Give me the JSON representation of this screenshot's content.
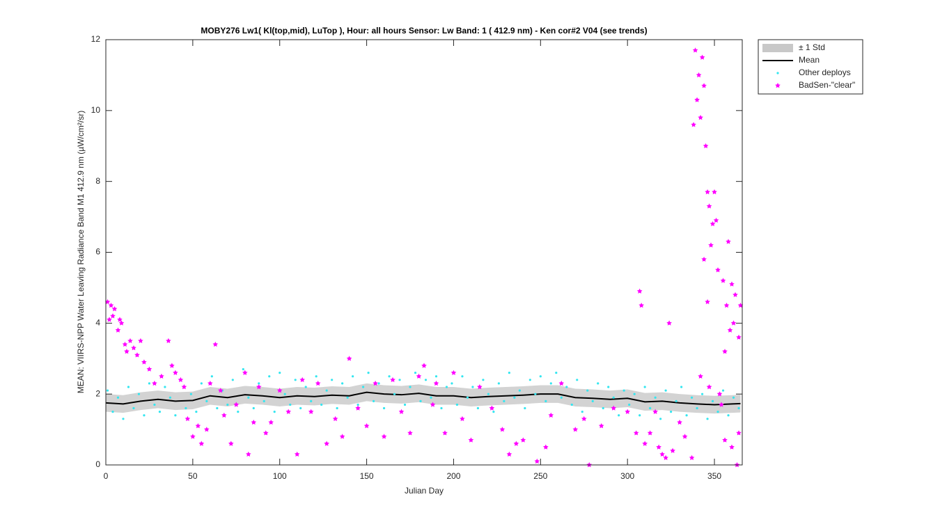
{
  "chart_data": {
    "type": "scatter",
    "title": "MOBY276   Lw1( Kl(top,mid), LuTop ),   Hour: all hours  Sensor: Lw Band: 1 ( 412.9 nm)  - Ken cor#2 V04 (see trends)",
    "xlabel": "Julian Day",
    "ylabel": "MEAN: VIIRS-NPP Water Leaving Radiance Band M1 412.9 nm (µW/cm²/sr)",
    "xlim": [
      0,
      366
    ],
    "ylim": [
      0,
      12
    ],
    "xticks": [
      0,
      50,
      100,
      150,
      200,
      250,
      300,
      350
    ],
    "yticks": [
      0,
      2,
      4,
      6,
      8,
      10,
      12
    ],
    "legend": "outside-upper-right",
    "series": [
      {
        "name": "± 1 Std",
        "kind": "band",
        "color": "#c8c8c8",
        "x": [
          0,
          10,
          20,
          30,
          40,
          50,
          60,
          70,
          80,
          90,
          100,
          110,
          120,
          130,
          140,
          150,
          160,
          170,
          180,
          190,
          200,
          210,
          220,
          230,
          240,
          250,
          260,
          270,
          280,
          290,
          300,
          310,
          320,
          330,
          340,
          350,
          360,
          365
        ],
        "upper": [
          2.0,
          1.97,
          2.05,
          2.1,
          2.05,
          2.07,
          2.2,
          2.15,
          2.23,
          2.2,
          2.15,
          2.2,
          2.18,
          2.22,
          2.2,
          2.3,
          2.25,
          2.23,
          2.27,
          2.2,
          2.2,
          2.15,
          2.18,
          2.2,
          2.22,
          2.25,
          2.25,
          2.15,
          2.13,
          2.1,
          2.13,
          2.03,
          2.05,
          2.0,
          1.97,
          1.95,
          1.97,
          1.98
        ],
        "lower": [
          1.5,
          1.47,
          1.55,
          1.6,
          1.55,
          1.57,
          1.7,
          1.65,
          1.73,
          1.7,
          1.65,
          1.7,
          1.68,
          1.72,
          1.7,
          1.8,
          1.75,
          1.73,
          1.77,
          1.7,
          1.7,
          1.65,
          1.68,
          1.7,
          1.72,
          1.75,
          1.75,
          1.65,
          1.63,
          1.6,
          1.63,
          1.53,
          1.55,
          1.5,
          1.47,
          1.45,
          1.47,
          1.48
        ]
      },
      {
        "name": "Mean",
        "kind": "line",
        "color": "#000000",
        "x": [
          0,
          10,
          20,
          30,
          40,
          50,
          60,
          70,
          80,
          90,
          100,
          110,
          120,
          130,
          140,
          150,
          160,
          170,
          180,
          190,
          200,
          210,
          220,
          230,
          240,
          250,
          260,
          270,
          280,
          290,
          300,
          310,
          320,
          330,
          340,
          350,
          360,
          365
        ],
        "values": [
          1.75,
          1.72,
          1.8,
          1.85,
          1.8,
          1.82,
          1.95,
          1.9,
          1.98,
          1.95,
          1.9,
          1.95,
          1.93,
          1.97,
          1.95,
          2.05,
          2.0,
          1.98,
          2.02,
          1.95,
          1.95,
          1.9,
          1.93,
          1.95,
          1.97,
          2.0,
          2.0,
          1.9,
          1.88,
          1.85,
          1.88,
          1.78,
          1.8,
          1.75,
          1.72,
          1.7,
          1.72,
          1.73
        ]
      },
      {
        "name": "Other deploys",
        "kind": "dots",
        "color": "#33e6f0",
        "x": [
          1,
          4,
          7,
          10,
          13,
          16,
          19,
          22,
          25,
          28,
          31,
          34,
          37,
          40,
          43,
          46,
          49,
          52,
          55,
          58,
          61,
          64,
          67,
          70,
          73,
          76,
          79,
          82,
          85,
          88,
          91,
          94,
          97,
          100,
          103,
          106,
          109,
          112,
          115,
          118,
          121,
          124,
          127,
          130,
          133,
          136,
          139,
          142,
          145,
          148,
          151,
          154,
          157,
          160,
          163,
          166,
          169,
          172,
          175,
          178,
          181,
          184,
          187,
          190,
          193,
          196,
          199,
          202,
          205,
          208,
          211,
          214,
          217,
          220,
          223,
          226,
          229,
          232,
          235,
          238,
          241,
          244,
          247,
          250,
          253,
          256,
          259,
          262,
          265,
          268,
          271,
          274,
          277,
          280,
          283,
          286,
          289,
          292,
          295,
          298,
          301,
          304,
          307,
          310,
          313,
          316,
          319,
          322,
          325,
          328,
          331,
          334,
          337,
          340,
          343,
          346,
          349,
          352,
          355,
          358,
          361,
          364
        ],
        "values": [
          2.1,
          1.5,
          1.9,
          1.3,
          2.2,
          1.6,
          2.0,
          1.4,
          2.3,
          1.7,
          1.5,
          2.2,
          1.9,
          1.4,
          2.4,
          1.6,
          2.0,
          1.5,
          2.3,
          1.8,
          2.5,
          1.6,
          2.1,
          1.7,
          2.4,
          1.5,
          2.7,
          1.9,
          1.6,
          2.3,
          1.8,
          2.5,
          1.5,
          2.6,
          2.0,
          1.7,
          2.4,
          1.6,
          2.2,
          1.8,
          2.5,
          1.7,
          2.1,
          2.4,
          1.6,
          2.3,
          1.9,
          2.5,
          1.7,
          2.2,
          2.6,
          1.8,
          2.3,
          1.6,
          2.5,
          2.0,
          2.4,
          1.7,
          2.2,
          2.6,
          1.8,
          2.4,
          1.9,
          2.5,
          1.6,
          2.2,
          2.3,
          1.7,
          2.5,
          1.9,
          2.2,
          1.6,
          2.4,
          2.0,
          1.5,
          2.3,
          1.8,
          2.6,
          1.9,
          2.1,
          1.6,
          2.4,
          2.0,
          2.5,
          1.8,
          2.3,
          2.6,
          1.9,
          2.2,
          1.7,
          2.4,
          1.5,
          2.1,
          1.8,
          2.3,
          1.6,
          2.2,
          1.9,
          1.4,
          2.1,
          1.7,
          2.0,
          1.4,
          2.2,
          1.6,
          1.9,
          1.3,
          2.1,
          1.5,
          1.8,
          2.2,
          1.4,
          1.9,
          1.6,
          2.0,
          1.3,
          1.8,
          1.5,
          2.1,
          1.4,
          1.9,
          1.6
        ]
      },
      {
        "name": "BadSen-\"clear\"",
        "kind": "stars",
        "color": "#ff00ff",
        "x": [
          1,
          2,
          3,
          4,
          5,
          7,
          8,
          9,
          11,
          12,
          14,
          16,
          18,
          20,
          22,
          25,
          28,
          32,
          36,
          38,
          40,
          43,
          45,
          47,
          50,
          53,
          55,
          58,
          60,
          63,
          66,
          68,
          72,
          75,
          80,
          82,
          85,
          88,
          92,
          95,
          100,
          105,
          110,
          113,
          118,
          122,
          127,
          132,
          136,
          140,
          145,
          150,
          155,
          160,
          165,
          170,
          175,
          180,
          183,
          188,
          190,
          195,
          200,
          205,
          210,
          215,
          222,
          228,
          232,
          236,
          240,
          248,
          253,
          256,
          262,
          270,
          275,
          278,
          285,
          292,
          300,
          305,
          307,
          308,
          310,
          313,
          316,
          318,
          320,
          322,
          324,
          326,
          330,
          333,
          337,
          338,
          339,
          340,
          341,
          342,
          343,
          344,
          345,
          346,
          347,
          348,
          349,
          350,
          351,
          352,
          353,
          354,
          355,
          356,
          357,
          358,
          359,
          360,
          361,
          362,
          363,
          364,
          365,
          346,
          344,
          342,
          347,
          356,
          360,
          364
        ],
        "values": [
          4.6,
          4.1,
          4.5,
          4.2,
          4.4,
          3.8,
          4.1,
          4.0,
          3.4,
          3.2,
          3.5,
          3.3,
          3.1,
          3.5,
          2.9,
          2.7,
          2.3,
          2.5,
          3.5,
          2.8,
          2.6,
          2.4,
          2.2,
          1.3,
          0.8,
          1.1,
          0.6,
          1.0,
          2.3,
          3.4,
          2.1,
          1.4,
          0.6,
          1.7,
          2.6,
          0.3,
          1.2,
          2.2,
          0.9,
          1.2,
          2.1,
          1.5,
          0.3,
          2.4,
          1.5,
          2.3,
          0.6,
          1.3,
          0.8,
          3.0,
          1.6,
          1.1,
          2.3,
          0.8,
          2.4,
          1.5,
          0.9,
          2.5,
          2.8,
          1.7,
          2.3,
          0.9,
          2.6,
          1.3,
          0.7,
          2.2,
          1.6,
          1.0,
          0.3,
          0.6,
          0.7,
          0.1,
          0.5,
          1.4,
          2.3,
          1.0,
          1.3,
          0.0,
          1.1,
          1.6,
          1.5,
          0.9,
          4.9,
          4.5,
          0.6,
          0.9,
          1.5,
          0.5,
          0.3,
          0.2,
          4.0,
          0.4,
          1.2,
          0.8,
          0.2,
          9.6,
          11.7,
          10.3,
          11.0,
          9.8,
          11.5,
          10.7,
          9.0,
          7.7,
          7.3,
          6.2,
          6.8,
          7.7,
          6.9,
          5.5,
          2.0,
          1.7,
          5.2,
          3.2,
          4.5,
          6.3,
          3.8,
          5.1,
          4.0,
          4.8,
          0.0,
          3.6,
          4.5,
          4.6,
          5.8,
          2.5,
          2.2,
          0.7,
          0.5,
          0.9
        ]
      }
    ]
  }
}
